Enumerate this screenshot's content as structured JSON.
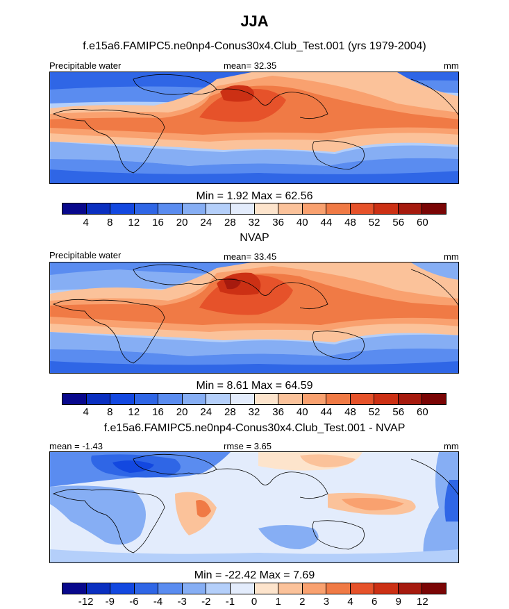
{
  "title": "JJA",
  "palettes": {
    "abs": [
      "#08088c",
      "#0a2fc0",
      "#1348e0",
      "#2f66e6",
      "#5a8cf0",
      "#86aef4",
      "#b4cffa",
      "#e3ecfc",
      "#fde4cc",
      "#fbc29a",
      "#f9a16f",
      "#f07a45",
      "#e6522a",
      "#cc3014",
      "#a61a0e",
      "#7a0505"
    ],
    "diff": [
      "#08088c",
      "#0a2fc0",
      "#1348e0",
      "#2f66e6",
      "#5a8cf0",
      "#86aef4",
      "#b4cffa",
      "#e3ecfc",
      "#fde4cc",
      "#fbc29a",
      "#f9a16f",
      "#f07a45",
      "#e6522a",
      "#cc3014",
      "#a61a0e",
      "#7a0505"
    ]
  },
  "panels": [
    {
      "subtitle": "f.e15a6.FAMIPC5.ne0np4-Conus30x4.Club_Test.001 (yrs 1979-2004)",
      "left_label": "Precipitable water",
      "center_label": "mean=  32.35",
      "right_label": "mm",
      "minmax": "Min =   1.92 Max =  62.56",
      "palette": "abs",
      "ticks": [
        "4",
        "8",
        "12",
        "16",
        "20",
        "24",
        "28",
        "32",
        "36",
        "40",
        "44",
        "48",
        "52",
        "56",
        "60"
      ]
    },
    {
      "subtitle": "NVAP",
      "left_label": "Precipitable water",
      "center_label": "mean=  33.45",
      "right_label": "mm",
      "minmax": "Min =   8.61 Max =  64.59",
      "palette": "abs",
      "ticks": [
        "4",
        "8",
        "12",
        "16",
        "20",
        "24",
        "28",
        "32",
        "36",
        "40",
        "44",
        "48",
        "52",
        "56",
        "60"
      ]
    },
    {
      "subtitle": "f.e15a6.FAMIPC5.ne0np4-Conus30x4.Club_Test.001 - NVAP",
      "left_label": "mean =  -1.43",
      "center_label": "rmse =   3.65",
      "right_label": "mm",
      "minmax": "Min = -22.42 Max =   7.69",
      "palette": "diff",
      "ticks": [
        "-12",
        "-9",
        "-6",
        "-4",
        "-3",
        "-2",
        "-1",
        "0",
        "1",
        "2",
        "3",
        "4",
        "6",
        "9",
        "12"
      ]
    }
  ]
}
